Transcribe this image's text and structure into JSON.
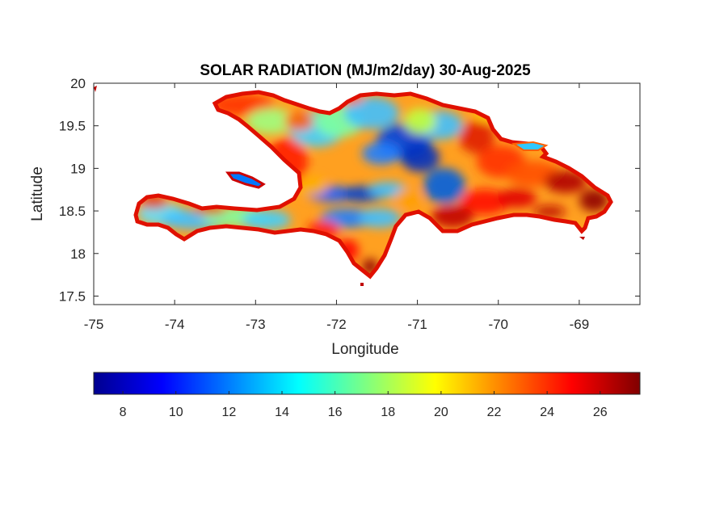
{
  "title": "SOLAR RADIATION (MJ/m2/day) 30-Aug-2025",
  "map": {
    "xlabel": "Longitude",
    "ylabel": "Latitude",
    "xlim": [
      -75,
      -68.25
    ],
    "ylim": [
      17.4,
      20
    ],
    "xticks": [
      -75,
      -74,
      -73,
      -72,
      -71,
      -70,
      -69
    ],
    "xtick_labels": [
      "-75",
      "-74",
      "-73",
      "-72",
      "-71",
      "-70",
      "-69"
    ],
    "yticks": [
      17.5,
      18,
      18.5,
      19,
      19.5,
      20
    ],
    "ytick_labels": [
      "17.5",
      "18",
      "18.5",
      "19",
      "19.5",
      "20"
    ],
    "region": "Hispaniola"
  },
  "colorbar": {
    "colormap": "jet",
    "range": [
      6.9,
      27.5
    ],
    "ticks": [
      8,
      10,
      12,
      14,
      16,
      18,
      20,
      22,
      24,
      26
    ],
    "tick_labels": [
      "8",
      "10",
      "12",
      "14",
      "16",
      "18",
      "20",
      "22",
      "24",
      "26"
    ],
    "colors": [
      "#00008f",
      "#0000ff",
      "#0080ff",
      "#00ffff",
      "#80ff80",
      "#ffff00",
      "#ff8000",
      "#ff0000",
      "#800000"
    ]
  }
}
